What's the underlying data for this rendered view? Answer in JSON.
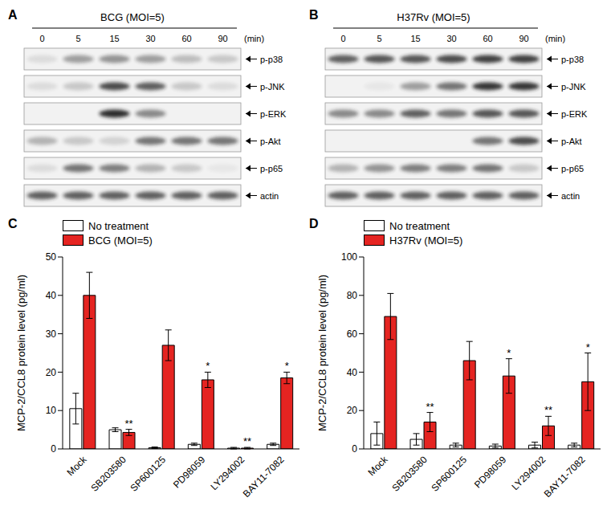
{
  "blots": [
    {
      "panel": "A",
      "title": "BCG (MOI=5)",
      "lanes": [
        0,
        5,
        15,
        30,
        60,
        90
      ],
      "unit": "(min)",
      "rows": [
        {
          "label": "p-p38",
          "intensity": [
            0.1,
            0.4,
            0.45,
            0.4,
            0.25,
            0.2
          ]
        },
        {
          "label": "p-JNK",
          "intensity": [
            0.1,
            0.2,
            0.8,
            0.7,
            0.2,
            0.1
          ]
        },
        {
          "label": "p-ERK",
          "intensity": [
            0,
            0,
            0.95,
            0.5,
            0,
            0
          ]
        },
        {
          "label": "p-Akt",
          "intensity": [
            0.3,
            0.2,
            0.15,
            0.6,
            0.6,
            0.6
          ]
        },
        {
          "label": "p-p65",
          "intensity": [
            0.1,
            0.6,
            0.55,
            0.3,
            0.2,
            0.05
          ]
        },
        {
          "label": "actin",
          "intensity": [
            0.7,
            0.7,
            0.7,
            0.7,
            0.7,
            0.7
          ]
        }
      ]
    },
    {
      "panel": "B",
      "title": "H37Rv (MOI=5)",
      "lanes": [
        0,
        5,
        15,
        30,
        60,
        90
      ],
      "unit": "(min)",
      "rows": [
        {
          "label": "p-p38",
          "intensity": [
            0.7,
            0.75,
            0.75,
            0.8,
            0.85,
            0.85
          ]
        },
        {
          "label": "p-JNK",
          "intensity": [
            0,
            0.05,
            0.4,
            0.6,
            0.9,
            0.9
          ]
        },
        {
          "label": "p-ERK",
          "intensity": [
            0.5,
            0.5,
            0.7,
            0.6,
            0.75,
            0.75
          ]
        },
        {
          "label": "p-Akt",
          "intensity": [
            0,
            0,
            0,
            0,
            0.6,
            0.8
          ]
        },
        {
          "label": "p-p65",
          "intensity": [
            0.3,
            0.45,
            0.55,
            0.55,
            0.6,
            0.2
          ]
        },
        {
          "label": "actin",
          "intensity": [
            0.7,
            0.7,
            0.7,
            0.7,
            0.7,
            0.7
          ]
        }
      ]
    }
  ],
  "chart_data": [
    {
      "panel": "C",
      "type": "bar",
      "y_label": "MCP-2/CCL8 protein level (pg/ml)",
      "categories": [
        "Mock",
        "SB203580",
        "SP600125",
        "PD98059",
        "LY294002",
        "BAY11-7082"
      ],
      "series": [
        {
          "name": "No treatment",
          "color": "#ffffff",
          "values": [
            10.5,
            5,
            0.3,
            1.2,
            0.2,
            1.2
          ],
          "errors": [
            4,
            0.5,
            0.2,
            0.3,
            0.2,
            0.3
          ]
        },
        {
          "name": "BCG (MOI=5)",
          "color": "#e52421",
          "values": [
            40,
            4.3,
            27,
            18,
            0.2,
            18.5
          ],
          "errors": [
            6,
            0.8,
            4,
            2,
            0.2,
            1.5
          ]
        }
      ],
      "annotations": [
        null,
        "**",
        null,
        "*",
        "**",
        "*"
      ],
      "ylim": [
        0,
        50
      ],
      "yticks": [
        0,
        10,
        20,
        30,
        40,
        50
      ],
      "legend": "top-left"
    },
    {
      "panel": "D",
      "type": "bar",
      "y_label": "MCP-2/CCL8 protein level (pg/ml)",
      "categories": [
        "Mock",
        "SB203580",
        "SP600125",
        "PD98059",
        "LY294002",
        "BAY11-7082"
      ],
      "series": [
        {
          "name": "No treatment",
          "color": "#ffffff",
          "values": [
            8,
            5,
            2,
            1.5,
            2,
            2
          ],
          "errors": [
            6,
            3,
            1,
            1,
            1.5,
            1
          ]
        },
        {
          "name": "H37Rv (MOI=5)",
          "color": "#e52421",
          "values": [
            69,
            14,
            46,
            38,
            12,
            35
          ],
          "errors": [
            12,
            5,
            10,
            9,
            5,
            15
          ]
        }
      ],
      "annotations": [
        null,
        "**",
        null,
        "*",
        "**",
        "*"
      ],
      "ylim": [
        0,
        100
      ],
      "yticks": [
        0,
        20,
        40,
        60,
        80,
        100
      ],
      "legend": "top-left"
    }
  ]
}
